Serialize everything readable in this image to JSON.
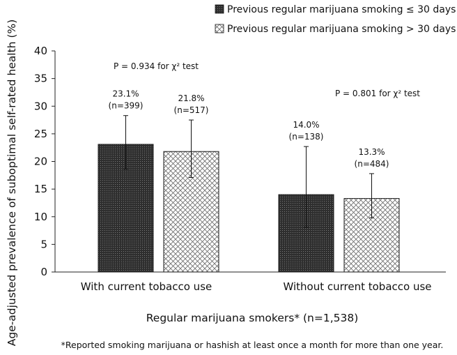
{
  "chart_data": {
    "type": "bar",
    "categories": [
      "With current tobacco use",
      "Without current tobacco use"
    ],
    "series": [
      {
        "name": "Previous regular marijuana smoking ≤ 30 days",
        "values": [
          23.1,
          14.0
        ],
        "error_low": [
          18.6,
          8.1
        ],
        "error_high": [
          28.3,
          22.7
        ],
        "labels": [
          [
            "23.1%",
            "(n=399)"
          ],
          [
            "14.0%",
            "(n=138)"
          ]
        ],
        "color": "#2b2b2b",
        "fill": "dark-dotted"
      },
      {
        "name": "Previous regular marijuana smoking > 30 days",
        "values": [
          21.8,
          13.3
        ],
        "error_low": [
          17.1,
          9.8
        ],
        "error_high": [
          27.5,
          17.8
        ],
        "labels": [
          [
            "21.8%",
            "(n=517)"
          ],
          [
            "13.3%",
            "(n=484)"
          ]
        ],
        "color": "#ffffff",
        "fill": "light-crosshatch"
      }
    ],
    "ylim": [
      0,
      40
    ],
    "yticks": [
      "0",
      "5",
      "10",
      "15",
      "20",
      "25",
      "30",
      "35",
      "40"
    ],
    "ylabel": "Age-adjusted prevalence of suboptimal self-rated health (%)",
    "xlabel": "Regular marijuana smokers*  (n=1,538)",
    "annotations": [
      "P = 0.934 for χ² test",
      "P = 0.801 for χ² test"
    ],
    "footnote": "*Reported smoking marijuana or hashish at least once a month for more than one year.",
    "legend_position": "top-right",
    "grid": false
  }
}
